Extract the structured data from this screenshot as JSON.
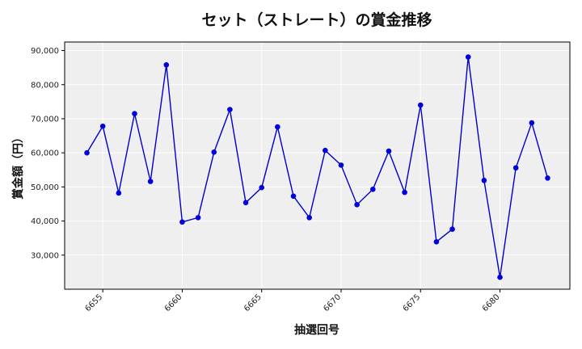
{
  "colors": {
    "line": "#0000cc",
    "marker": "#0000dd",
    "plot_background": "#efefef",
    "grid": "#ffffff",
    "axis": "#000000"
  },
  "chart_data": {
    "type": "line",
    "title": "セット（ストレート）の賞金推移",
    "xlabel": "抽選回号",
    "ylabel": "賞金額（円）",
    "xlim": [
      6652.6,
      6684.4
    ],
    "ylim": [
      20000,
      92500
    ],
    "grid": true,
    "x_ticks": [
      6655,
      6660,
      6665,
      6670,
      6675,
      6680
    ],
    "x_tick_labels": [
      "6655",
      "6660",
      "6665",
      "6670",
      "6675",
      "6680"
    ],
    "y_ticks": [
      30000,
      40000,
      50000,
      60000,
      70000,
      80000,
      90000
    ],
    "y_tick_labels": [
      "30,000",
      "40,000",
      "50,000",
      "60,000",
      "70,000",
      "80,000",
      "90,000"
    ],
    "series": [
      {
        "x": [
          6654,
          6655,
          6656,
          6657,
          6658,
          6659,
          6660,
          6661,
          6662,
          6663,
          6664,
          6665,
          6666,
          6667,
          6668,
          6669,
          6670,
          6671,
          6672,
          6673,
          6674,
          6675,
          6676,
          6677,
          6678,
          6679,
          6680,
          6681,
          6682,
          6683
        ],
        "values": [
          60000,
          67800,
          48200,
          71500,
          51600,
          85800,
          39700,
          41000,
          60200,
          72700,
          45400,
          49800,
          67600,
          47300,
          41000,
          60700,
          56400,
          44800,
          49300,
          60500,
          48400,
          74000,
          33900,
          37600,
          88100,
          51900,
          23500,
          55600,
          68800,
          52600
        ]
      }
    ]
  }
}
